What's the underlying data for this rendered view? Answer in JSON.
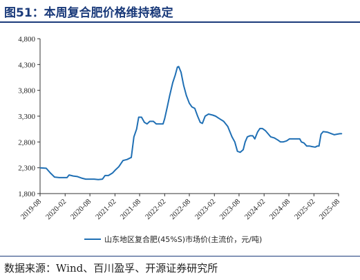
{
  "header": {
    "title": "图51：本周复合肥价格维持稳定"
  },
  "footer": {
    "source": "数据来源：Wind、百川盈孚、开源证券研究所"
  },
  "colors": {
    "line": "#1f6fb4",
    "title": "#1a3a7a"
  },
  "chart_data": {
    "type": "line",
    "ylim": [
      1800,
      4800
    ],
    "yticks": [
      "1,800",
      "2,300",
      "2,800",
      "3,300",
      "3,800",
      "4,300",
      "4,800"
    ],
    "xticks": [
      "2019-08",
      "2020-02",
      "2020-08",
      "2021-02",
      "2021-08",
      "2022-02",
      "2022-08",
      "2023-02",
      "2023-08",
      "2024-02",
      "2024-08",
      "2025-02",
      "2025-08"
    ],
    "legend_position": "bottom",
    "series": [
      {
        "name": "山东地区复合肥(45%S)市场价(主流价，元/吨)",
        "points": [
          [
            "2019-08-01",
            2300
          ],
          [
            "2019-09-15",
            2290
          ],
          [
            "2019-10-15",
            2200
          ],
          [
            "2019-11-15",
            2120
          ],
          [
            "2019-12-20",
            2110
          ],
          [
            "2020-01-20",
            2110
          ],
          [
            "2020-02-15",
            2110
          ],
          [
            "2020-03-01",
            2160
          ],
          [
            "2020-04-01",
            2140
          ],
          [
            "2020-05-01",
            2130
          ],
          [
            "2020-06-01",
            2100
          ],
          [
            "2020-07-01",
            2080
          ],
          [
            "2020-08-01",
            2080
          ],
          [
            "2020-09-01",
            2080
          ],
          [
            "2020-10-01",
            2070
          ],
          [
            "2020-11-01",
            2080
          ],
          [
            "2020-11-20",
            2150
          ],
          [
            "2020-12-15",
            2150
          ],
          [
            "2021-01-15",
            2200
          ],
          [
            "2021-02-01",
            2250
          ],
          [
            "2021-03-01",
            2320
          ],
          [
            "2021-04-01",
            2440
          ],
          [
            "2021-05-01",
            2460
          ],
          [
            "2021-06-01",
            2500
          ],
          [
            "2021-06-20",
            2900
          ],
          [
            "2021-07-10",
            3050
          ],
          [
            "2021-07-25",
            3280
          ],
          [
            "2021-08-15",
            3280
          ],
          [
            "2021-09-05",
            3180
          ],
          [
            "2021-09-25",
            3150
          ],
          [
            "2021-10-15",
            3200
          ],
          [
            "2021-11-10",
            3200
          ],
          [
            "2021-12-01",
            3150
          ],
          [
            "2022-01-01",
            3150
          ],
          [
            "2022-01-20",
            3150
          ],
          [
            "2022-02-01",
            3250
          ],
          [
            "2022-02-20",
            3480
          ],
          [
            "2022-03-10",
            3700
          ],
          [
            "2022-04-01",
            3950
          ],
          [
            "2022-04-20",
            4100
          ],
          [
            "2022-05-05",
            4250
          ],
          [
            "2022-05-15",
            4260
          ],
          [
            "2022-06-01",
            4150
          ],
          [
            "2022-06-20",
            3900
          ],
          [
            "2022-07-10",
            3700
          ],
          [
            "2022-08-01",
            3550
          ],
          [
            "2022-08-20",
            3480
          ],
          [
            "2022-09-10",
            3450
          ],
          [
            "2022-10-01",
            3300
          ],
          [
            "2022-10-20",
            3180
          ],
          [
            "2022-11-05",
            3160
          ],
          [
            "2022-11-25",
            3300
          ],
          [
            "2022-12-20",
            3340
          ],
          [
            "2023-01-20",
            3320
          ],
          [
            "2023-02-10",
            3300
          ],
          [
            "2023-03-10",
            3250
          ],
          [
            "2023-04-10",
            3200
          ],
          [
            "2023-05-10",
            3100
          ],
          [
            "2023-06-10",
            2900
          ],
          [
            "2023-07-01",
            2800
          ],
          [
            "2023-07-20",
            2620
          ],
          [
            "2023-08-10",
            2600
          ],
          [
            "2023-09-01",
            2650
          ],
          [
            "2023-09-15",
            2800
          ],
          [
            "2023-10-01",
            2900
          ],
          [
            "2023-10-20",
            2920
          ],
          [
            "2023-11-10",
            2920
          ],
          [
            "2023-11-25",
            2860
          ],
          [
            "2023-12-15",
            2990
          ],
          [
            "2024-01-01",
            3060
          ],
          [
            "2024-01-20",
            3060
          ],
          [
            "2024-02-10",
            3020
          ],
          [
            "2024-03-01",
            2960
          ],
          [
            "2024-03-20",
            2900
          ],
          [
            "2024-04-15",
            2880
          ],
          [
            "2024-05-10",
            2840
          ],
          [
            "2024-06-01",
            2800
          ],
          [
            "2024-06-20",
            2800
          ],
          [
            "2024-07-15",
            2820
          ],
          [
            "2024-08-05",
            2860
          ],
          [
            "2024-09-01",
            2860
          ],
          [
            "2024-10-01",
            2860
          ],
          [
            "2024-10-20",
            2860
          ],
          [
            "2024-11-01",
            2800
          ],
          [
            "2024-11-20",
            2780
          ],
          [
            "2024-12-10",
            2720
          ],
          [
            "2025-01-01",
            2720
          ],
          [
            "2025-01-20",
            2710
          ],
          [
            "2025-02-10",
            2700
          ],
          [
            "2025-02-25",
            2720
          ],
          [
            "2025-03-10",
            2720
          ],
          [
            "2025-03-25",
            2950
          ],
          [
            "2025-04-10",
            3000
          ],
          [
            "2025-05-10",
            2990
          ],
          [
            "2025-06-10",
            2960
          ],
          [
            "2025-07-01",
            2940
          ],
          [
            "2025-07-20",
            2950
          ],
          [
            "2025-08-10",
            2960
          ],
          [
            "2025-08-25",
            2960
          ]
        ]
      }
    ]
  }
}
